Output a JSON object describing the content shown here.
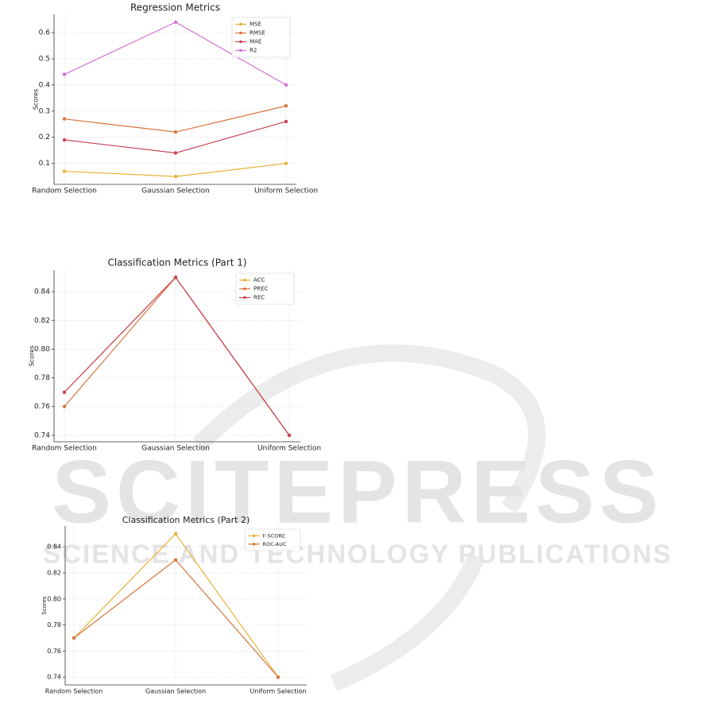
{
  "watermark": {
    "title": "SCITEPRESS",
    "subtitle": "SCIENCE AND TECHNOLOGY PUBLICATIONS"
  },
  "chart_data": [
    {
      "type": "line",
      "title": "Regression Metrics",
      "y_label": "Scores",
      "categories": [
        "Random Selection",
        "Gaussian Selection",
        "Uniform Selection"
      ],
      "series": [
        {
          "name": "MSE",
          "color": "#e8b135",
          "values": [
            0.07,
            0.05,
            0.1
          ]
        },
        {
          "name": "RMSE",
          "color": "#d8743c",
          "values": [
            0.27,
            0.22,
            0.32
          ]
        },
        {
          "name": "MAE",
          "color": "#c74458",
          "values": [
            0.19,
            0.14,
            0.26
          ]
        },
        {
          "name": "R2",
          "color": "#d66fd2",
          "values": [
            0.44,
            0.64,
            0.4
          ]
        }
      ],
      "ylim": [
        0.02,
        0.67
      ],
      "yticks": [
        0.1,
        0.2,
        0.3,
        0.4,
        0.5,
        0.6
      ],
      "grid": true,
      "legend": "upper right"
    },
    {
      "type": "line",
      "title": "Classification Metrics (Part 1)",
      "y_label": "Scores",
      "categories": [
        "Random Selection",
        "Gaussian Selection",
        "Uniform Selection"
      ],
      "series": [
        {
          "name": "ACC",
          "color": "#e8b135",
          "values": [
            0.77,
            0.85,
            0.74
          ]
        },
        {
          "name": "PREC",
          "color": "#d8743c",
          "values": [
            0.76,
            0.85,
            0.74
          ]
        },
        {
          "name": "REC",
          "color": "#c74458",
          "values": [
            0.77,
            0.85,
            0.74
          ]
        }
      ],
      "ylim": [
        0.7355,
        0.855
      ],
      "yticks": [
        0.74,
        0.76,
        0.78,
        {
          "value": 0.8,
          "label": "0.80"
        },
        0.82,
        0.84
      ],
      "grid": true,
      "legend": "upper right"
    },
    {
      "type": "line",
      "title": "Classification Metrics (Part 2)",
      "y_label": "Scores",
      "categories": [
        "Random Selection",
        "Gaussian Selection",
        "Uniform Selection"
      ],
      "series": [
        {
          "name": "F-SCORE",
          "color": "#e8b135",
          "values": [
            0.77,
            0.85,
            0.74
          ]
        },
        {
          "name": "ROC-AUC",
          "color": "#d8743c",
          "values": [
            0.77,
            0.83,
            0.74
          ]
        }
      ],
      "ylim": [
        0.734,
        0.856
      ],
      "yticks": [
        0.74,
        0.76,
        0.78,
        {
          "value": 0.8,
          "label": "0.80"
        },
        0.82,
        0.84
      ],
      "grid": true,
      "legend": "upper right"
    }
  ]
}
